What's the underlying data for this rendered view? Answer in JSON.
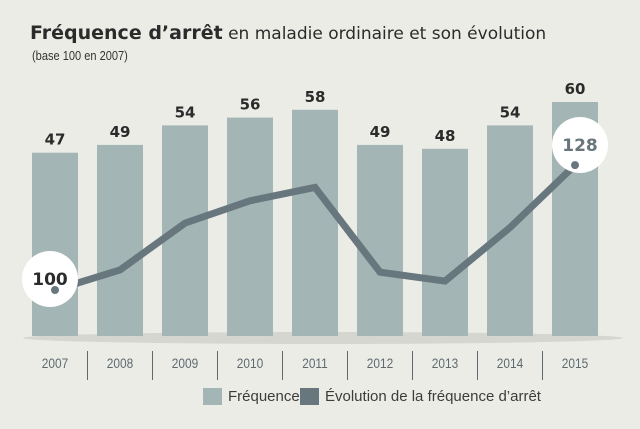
{
  "chart_data": {
    "type": "bar+line",
    "title_bold": "Fréquence d’arrêt",
    "title_rest": " en maladie ordinaire et son évolution",
    "subtitle": "(base 100 en 2007)",
    "categories": [
      "2007",
      "2008",
      "2009",
      "2010",
      "2011",
      "2012",
      "2013",
      "2014",
      "2015"
    ],
    "series": [
      {
        "name": "Fréquence",
        "type": "bar",
        "color": "#a3b5b4",
        "values": [
          47,
          49,
          54,
          56,
          58,
          49,
          48,
          54,
          60
        ]
      },
      {
        "name": "Évolution de la fréquence d’arrêt",
        "type": "line",
        "color": "#67777d",
        "values": [
          100,
          104.5,
          115,
          120,
          123,
          104,
          102,
          114,
          128
        ],
        "labelled_points": {
          "2007": "100",
          "2015": "128"
        }
      }
    ],
    "legend_position": "bottom",
    "grid": false
  }
}
